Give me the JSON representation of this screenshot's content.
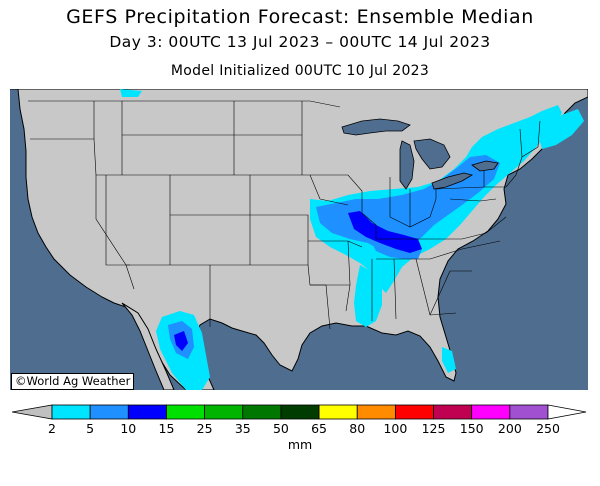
{
  "header": {
    "title": "GEFS Precipitation Forecast: Ensemble Median",
    "valid_period": "Day 3: 00UTC 13 Jul 2023 – 00UTC 14 Jul 2023",
    "init": "Model Initialized 00UTC 10 Jul 2023"
  },
  "credit": "©World Ag Weather",
  "legend": {
    "unit": "mm",
    "ticks": [
      "2",
      "5",
      "10",
      "15",
      "25",
      "35",
      "50",
      "65",
      "80",
      "100",
      "125",
      "150",
      "200",
      "250"
    ],
    "colors": [
      "#c0c0c0",
      "#00e5ff",
      "#1e90ff",
      "#0000ff",
      "#00e000",
      "#00b400",
      "#007800",
      "#003c00",
      "#ffff00",
      "#ff8c00",
      "#ff0000",
      "#c00050",
      "#ff00ff",
      "#a050d0"
    ]
  },
  "colors": {
    "ocean": "#4f6d8f",
    "land": "#c8c8c8",
    "lake": "#4f6d8f",
    "cyan": "#00e5ff",
    "blue": "#1e90ff",
    "dark_blue": "#0000ff"
  }
}
